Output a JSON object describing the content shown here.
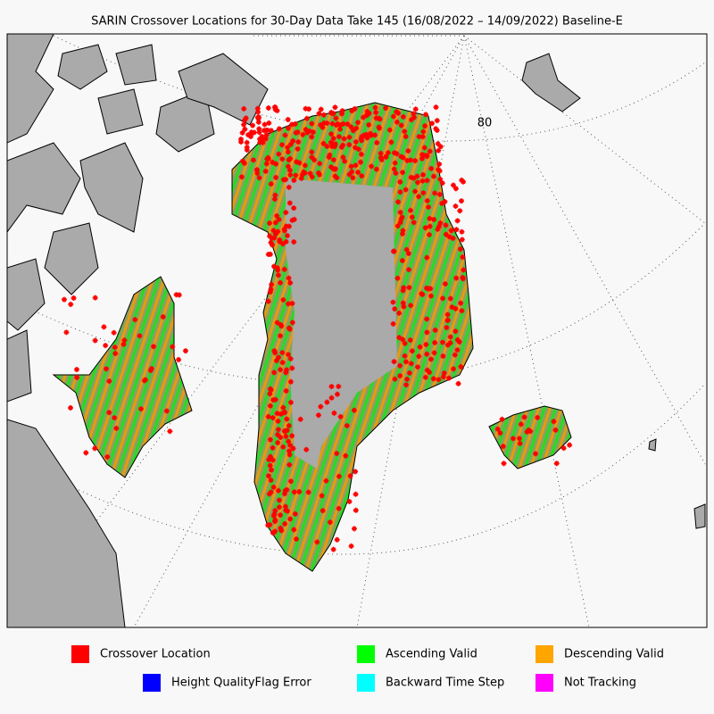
{
  "title": "SARIN Crossover Locations for 30-Day Data Take 145 (16/08/2022 – 14/09/2022) Baseline-E",
  "map": {
    "graticule_labels": [
      "80"
    ]
  },
  "legend": [
    {
      "label": "Crossover Location",
      "color": "#ff0000"
    },
    {
      "label": "Ascending Valid",
      "color": "#00ff00"
    },
    {
      "label": "Descending Valid",
      "color": "#ffa500"
    },
    {
      "label": "Height QualityFlag Error",
      "color": "#0000ff"
    },
    {
      "label": "Backward Time Step",
      "color": "#00ffff"
    },
    {
      "label": "Not Tracking",
      "color": "#ff00ff"
    }
  ]
}
